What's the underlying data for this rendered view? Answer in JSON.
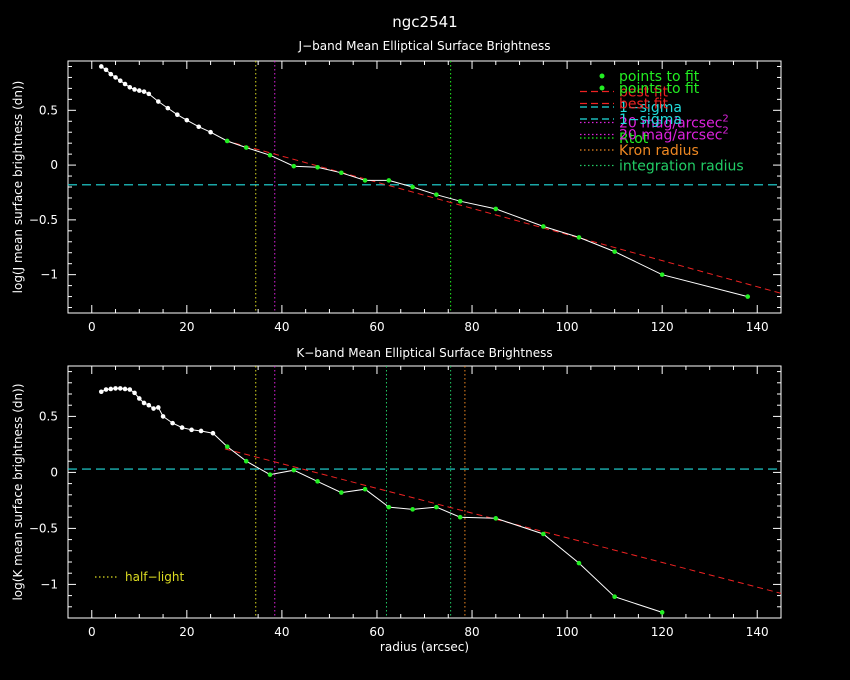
{
  "figure_title": "ngc2541",
  "colors": {
    "axis": "#ffffff",
    "points_to_fit": "#22ee22",
    "best_fit": "#ee2222",
    "one_sigma": "#22dddd",
    "mag20": "#dd22dd",
    "rtot": "#22ee22",
    "kron": "#ee8822",
    "integration": "#22cc66",
    "half_light": "#dddd22",
    "profile": "#ffffff"
  },
  "chart_data": [
    {
      "type": "line",
      "title": "J−band Mean Elliptical Surface Brightness",
      "xlabel": "",
      "ylabel": "log(J mean surface brightness (dn))",
      "xlim": [
        -5,
        145
      ],
      "ylim": [
        -1.35,
        0.95
      ],
      "xticks": [
        0,
        20,
        40,
        60,
        80,
        100,
        120,
        140
      ],
      "yticks": [
        0.5,
        0,
        -0.5,
        -1
      ],
      "ytick_labels": [
        "0.5",
        "0",
        "−0.5",
        "−1"
      ],
      "legend": {
        "placement": "top-right",
        "entries": [
          {
            "label": "points to fit",
            "style": "dot",
            "color_key": "points_to_fit"
          },
          {
            "label": "best fit",
            "style": "dashed-long",
            "color_key": "best_fit"
          },
          {
            "label": "1−sigma",
            "style": "dashed-long",
            "color_key": "one_sigma"
          },
          {
            "label": "20 mag/arcsec",
            "sup": "2",
            "style": "dotted",
            "color_key": "mag20"
          },
          {
            "label": "Rtot",
            "style": "dotted",
            "color_key": "rtot"
          }
        ]
      },
      "profile": {
        "x": [
          2,
          3,
          4,
          5,
          6,
          7,
          8,
          9,
          10,
          11,
          12,
          14,
          16,
          18,
          20,
          22.5,
          25,
          28.5,
          32.5,
          37.5,
          42.5,
          47.5,
          52.5,
          57.5,
          62.5,
          67.5,
          72.5,
          77.5,
          85,
          95,
          102.5,
          110,
          120,
          138
        ],
        "y": [
          0.9,
          0.87,
          0.83,
          0.8,
          0.77,
          0.74,
          0.71,
          0.69,
          0.68,
          0.67,
          0.65,
          0.58,
          0.52,
          0.46,
          0.41,
          0.35,
          0.3,
          0.22,
          0.16,
          0.09,
          -0.01,
          -0.02,
          -0.07,
          -0.14,
          -0.14,
          -0.2,
          -0.27,
          -0.33,
          -0.4,
          -0.56,
          -0.66,
          -0.79,
          -1.0,
          -1.2
        ]
      },
      "fit_points_from_index": 17,
      "best_fit_line": {
        "x": [
          28,
          145
        ],
        "y": [
          0.225,
          -1.17
        ]
      },
      "one_sigma_level": -0.18,
      "vlines": [
        {
          "x": 34.5,
          "color_key": "half_light"
        },
        {
          "x": 38.5,
          "color_key": "mag20"
        },
        {
          "x": 75.5,
          "color_key": "rtot"
        }
      ]
    },
    {
      "type": "line",
      "title": "K−band Mean Elliptical Surface Brightness",
      "xlabel": "radius (arcsec)",
      "ylabel": "log(K mean surface brightness (dn))",
      "xlim": [
        -5,
        145
      ],
      "ylim": [
        -1.3,
        0.95
      ],
      "xticks": [
        0,
        20,
        40,
        60,
        80,
        100,
        120,
        140
      ],
      "yticks": [
        0.5,
        0,
        -0.5,
        -1
      ],
      "ytick_labels": [
        "0.5",
        "0",
        "−0.5",
        "−1"
      ],
      "legend": {
        "placement": "top-right",
        "entries": [
          {
            "label": "points to fit",
            "style": "dot",
            "color_key": "points_to_fit"
          },
          {
            "label": "best fit",
            "style": "dashed-long",
            "color_key": "best_fit"
          },
          {
            "label": "1−sigma",
            "style": "dashed-long",
            "color_key": "one_sigma"
          },
          {
            "label": "20 mag/arcsec",
            "sup": "2",
            "style": "dotted",
            "color_key": "mag20"
          },
          {
            "label": "Kron radius",
            "style": "dotted",
            "color_key": "kron"
          },
          {
            "label": "integration radius",
            "style": "dotted",
            "color_key": "integration"
          }
        ]
      },
      "annotation": {
        "label": "half−light",
        "color_key": "half_light"
      },
      "profile": {
        "x": [
          2,
          3,
          4,
          5,
          6,
          7,
          8,
          9,
          10,
          11,
          12,
          13,
          14,
          15,
          17,
          19,
          21,
          23,
          25.5,
          28.5,
          32.5,
          37.5,
          42.5,
          47.5,
          52.5,
          57.5,
          62.5,
          67.5,
          72.5,
          77.5,
          85,
          95,
          102.5,
          110,
          120
        ],
        "y": [
          0.72,
          0.74,
          0.745,
          0.75,
          0.75,
          0.745,
          0.74,
          0.71,
          0.66,
          0.62,
          0.6,
          0.57,
          0.58,
          0.5,
          0.44,
          0.4,
          0.38,
          0.37,
          0.35,
          0.23,
          0.1,
          -0.02,
          0.02,
          -0.08,
          -0.18,
          -0.15,
          -0.31,
          -0.33,
          -0.31,
          -0.4,
          -0.41,
          -0.55,
          -0.81,
          -1.11,
          -1.25
        ]
      },
      "fit_points_from_index": 19,
      "best_fit_line": {
        "x": [
          28,
          145
        ],
        "y": [
          0.21,
          -1.08
        ]
      },
      "one_sigma_level": 0.03,
      "vlines": [
        {
          "x": 34.5,
          "color_key": "half_light"
        },
        {
          "x": 38.5,
          "color_key": "mag20"
        },
        {
          "x": 62,
          "color_key": "integration"
        },
        {
          "x": 75.5,
          "color_key": "integration"
        },
        {
          "x": 78.5,
          "color_key": "kron"
        }
      ]
    }
  ]
}
